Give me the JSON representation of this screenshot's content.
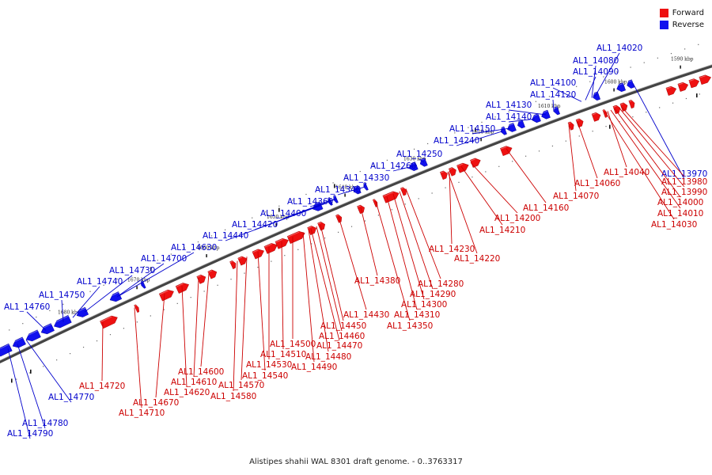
{
  "legend": {
    "forward": {
      "label": "Forward",
      "color": "#ee1111"
    },
    "reverse": {
      "label": "Reverse",
      "color": "#1111ee"
    }
  },
  "caption": "Alistipes shahii WAL 8301 draft genome. - 0..3763317",
  "kbp_marks": [
    "1590 kbp",
    "1600 kbp",
    "1610 kbp",
    "1620 kbp",
    "1630 kbp",
    "1640 kbp",
    "1650 kbp",
    "1660 kbp",
    "1670 kbp",
    "1680 kbp"
  ],
  "genes": [
    {
      "label": "AL1_14020",
      "strand": "reverse"
    },
    {
      "label": "AL1_14080",
      "strand": "reverse"
    },
    {
      "label": "AL1_14090",
      "strand": "reverse"
    },
    {
      "label": "AL1_14100",
      "strand": "reverse"
    },
    {
      "label": "AL1_14120",
      "strand": "reverse"
    },
    {
      "label": "AL1_14130",
      "strand": "reverse"
    },
    {
      "label": "AL1_14140",
      "strand": "reverse"
    },
    {
      "label": "AL1_14150",
      "strand": "reverse"
    },
    {
      "label": "AL1_14240",
      "strand": "reverse"
    },
    {
      "label": "AL1_14250",
      "strand": "reverse"
    },
    {
      "label": "AL1_14260",
      "strand": "reverse"
    },
    {
      "label": "AL1_14330",
      "strand": "reverse"
    },
    {
      "label": "AL1_14340",
      "strand": "reverse"
    },
    {
      "label": "AL1_14360",
      "strand": "reverse"
    },
    {
      "label": "AL1_14400",
      "strand": "reverse"
    },
    {
      "label": "AL1_14420",
      "strand": "reverse"
    },
    {
      "label": "AL1_14440",
      "strand": "reverse"
    },
    {
      "label": "AL1_14630",
      "strand": "reverse"
    },
    {
      "label": "AL1_14700",
      "strand": "reverse"
    },
    {
      "label": "AL1_14730",
      "strand": "reverse"
    },
    {
      "label": "AL1_14740",
      "strand": "reverse"
    },
    {
      "label": "AL1_14750",
      "strand": "reverse"
    },
    {
      "label": "AL1_14760",
      "strand": "reverse"
    },
    {
      "label": "AL1_14770",
      "strand": "reverse"
    },
    {
      "label": "AL1_14780",
      "strand": "reverse"
    },
    {
      "label": "AL1_14790",
      "strand": "reverse"
    },
    {
      "label": "AL1_13970",
      "strand": "reverse"
    },
    {
      "label": "AL1_14040",
      "strand": "forward"
    },
    {
      "label": "AL1_13980",
      "strand": "forward"
    },
    {
      "label": "AL1_13990",
      "strand": "forward"
    },
    {
      "label": "AL1_14000",
      "strand": "forward"
    },
    {
      "label": "AL1_14010",
      "strand": "forward"
    },
    {
      "label": "AL1_14030",
      "strand": "forward"
    },
    {
      "label": "AL1_14060",
      "strand": "forward"
    },
    {
      "label": "AL1_14070",
      "strand": "forward"
    },
    {
      "label": "AL1_14160",
      "strand": "forward"
    },
    {
      "label": "AL1_14200",
      "strand": "forward"
    },
    {
      "label": "AL1_14210",
      "strand": "forward"
    },
    {
      "label": "AL1_14230",
      "strand": "forward"
    },
    {
      "label": "AL1_14220",
      "strand": "forward"
    },
    {
      "label": "AL1_14280",
      "strand": "forward"
    },
    {
      "label": "AL1_14290",
      "strand": "forward"
    },
    {
      "label": "AL1_14300",
      "strand": "forward"
    },
    {
      "label": "AL1_14310",
      "strand": "forward"
    },
    {
      "label": "AL1_14350",
      "strand": "forward"
    },
    {
      "label": "AL1_14380",
      "strand": "forward"
    },
    {
      "label": "AL1_14430",
      "strand": "forward"
    },
    {
      "label": "AL1_14450",
      "strand": "forward"
    },
    {
      "label": "AL1_14460",
      "strand": "forward"
    },
    {
      "label": "AL1_14470",
      "strand": "forward"
    },
    {
      "label": "AL1_14480",
      "strand": "forward"
    },
    {
      "label": "AL1_14490",
      "strand": "forward"
    },
    {
      "label": "AL1_14500",
      "strand": "forward"
    },
    {
      "label": "AL1_14510",
      "strand": "forward"
    },
    {
      "label": "AL1_14530",
      "strand": "forward"
    },
    {
      "label": "AL1_14540",
      "strand": "forward"
    },
    {
      "label": "AL1_14570",
      "strand": "forward"
    },
    {
      "label": "AL1_14580",
      "strand": "forward"
    },
    {
      "label": "AL1_14600",
      "strand": "forward"
    },
    {
      "label": "AL1_14610",
      "strand": "forward"
    },
    {
      "label": "AL1_14620",
      "strand": "forward"
    },
    {
      "label": "AL1_14670",
      "strand": "forward"
    },
    {
      "label": "AL1_14710",
      "strand": "forward"
    },
    {
      "label": "AL1_14720",
      "strand": "forward"
    }
  ]
}
